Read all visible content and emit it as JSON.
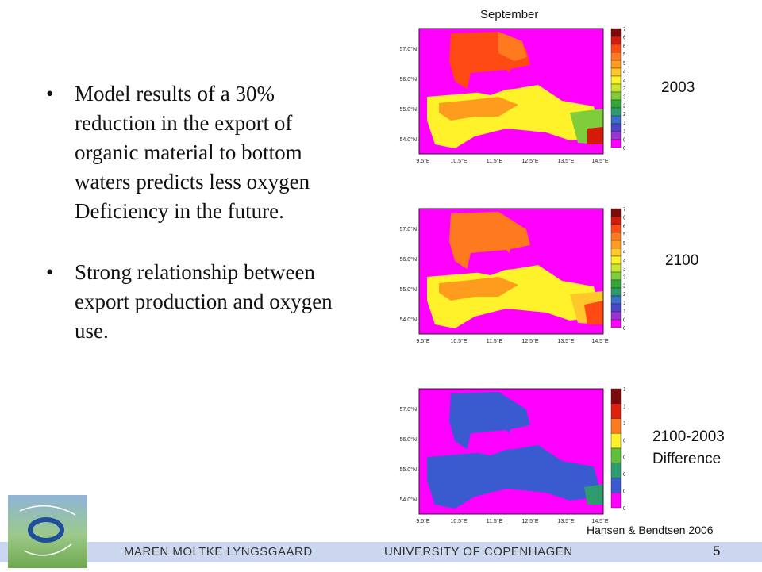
{
  "bullets": [
    "Model results of a 30% reduction in the export of organic material to bottom waters predicts less oxygen Deficiency in the future.",
    "Strong relationship between export production and oxygen use."
  ],
  "bullet_symbol": "•",
  "top_label": "September",
  "maps": [
    {
      "label": "2003",
      "lat_ticks": [
        "57.0°N",
        "56.0°N",
        "55.0°N",
        "54.0°N"
      ],
      "lon_ticks": [
        "9.5°E",
        "10.5°E",
        "11.5°E",
        "12.5°E",
        "13.5°E",
        "14.5°E"
      ],
      "colorbar_ticks": [
        "7",
        "6.5",
        "6",
        "5.5",
        "5",
        "4.5",
        "4",
        "3.5",
        "3",
        "2.5",
        "2",
        "1.5",
        "1",
        "0.5",
        "0"
      ]
    },
    {
      "label": "2100",
      "lat_ticks": [
        "57.0°N",
        "56.0°N",
        "55.0°N",
        "54.0°N"
      ],
      "lon_ticks": [
        "9.5°E",
        "10.5°E",
        "11.5°E",
        "12.5°E",
        "13.5°E",
        "14.5°E"
      ],
      "colorbar_ticks": [
        "7",
        "6.5",
        "6",
        "5.5",
        "5",
        "4.5",
        "4",
        "3.5",
        "3",
        "2.5",
        "2",
        "1.5",
        "1",
        "0.5",
        "0"
      ]
    },
    {
      "label_line1": "2100-2003",
      "label_line2": "Difference",
      "lat_ticks": [
        "57.0°N",
        "56.0°N",
        "55.0°N",
        "54.0°N"
      ],
      "lon_ticks": [
        "9.5°E",
        "10.5°E",
        "11.5°E",
        "12.5°E",
        "13.5°E",
        "14.5°E"
      ],
      "colorbar_ticks": [
        "1.4",
        "1.2",
        "1",
        "0.8",
        "0.6",
        "0.4",
        "0.2",
        "0"
      ]
    }
  ],
  "colorbar_colors_main": [
    "#7d0a0a",
    "#d41a0a",
    "#ff4a14",
    "#ff7a1e",
    "#ff9c1e",
    "#ffc82a",
    "#fff22a",
    "#c8e632",
    "#7fcd3a",
    "#35a83a",
    "#2e9c6e",
    "#3a6ec8",
    "#4a46c8",
    "#9a32d4",
    "#ff00ff"
  ],
  "colorbar_colors_diff": [
    "#7d0a0a",
    "#e0200a",
    "#ff7a1e",
    "#fff22a",
    "#5fbf3a",
    "#2e9c6e",
    "#3a5ad0",
    "#ff00ff"
  ],
  "citation": "Hansen & Bendtsen 2006",
  "footer": {
    "name": "MAREN MOLTKE LYNGSGAARD",
    "university": "UNIVERSITY OF COPENHAGEN",
    "page_number": "5"
  }
}
